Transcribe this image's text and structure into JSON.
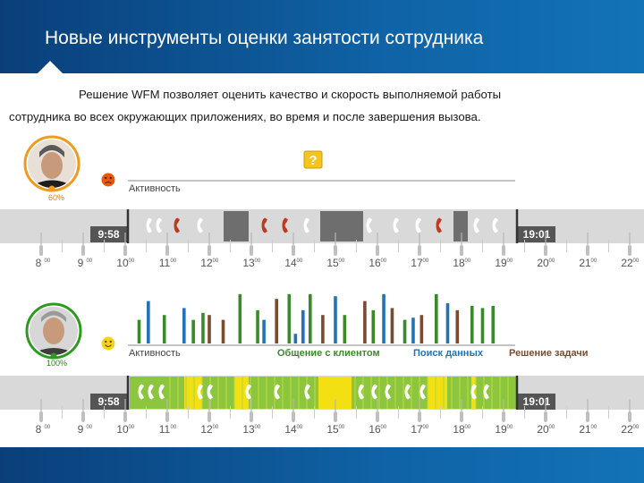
{
  "header": {
    "title": "Новые инструменты оценки занятости сотрудника"
  },
  "description": {
    "line1": "Решение WFM позволяет оценить качество и скорость выполняемой работы",
    "line2": "сотрудника во всех окружающих приложениях, во время и после завершения вызова."
  },
  "top_panel": {
    "percent": "60%",
    "activity_label": "Активность",
    "shift_start": "9:58",
    "shift_end": "19:01",
    "help_symbol": "?"
  },
  "bottom_panel": {
    "percent": "100%",
    "activity_label": "Активность",
    "legend": [
      {
        "label": "Общение с клиентом",
        "color": "#3a8a2a"
      },
      {
        "label": "Поиск данных",
        "color": "#1f74b8"
      },
      {
        "label": "Решение задачи",
        "color": "#7a4b30"
      }
    ],
    "shift_start": "9:58",
    "shift_end": "19:01",
    "bars": [
      {
        "hour": 10.33,
        "value": 0.44,
        "type": 0
      },
      {
        "hour": 10.55,
        "value": 0.79,
        "type": 1
      },
      {
        "hour": 10.93,
        "value": 0.53,
        "type": 0
      },
      {
        "hour": 11.4,
        "value": 0.66,
        "type": 1
      },
      {
        "hour": 11.62,
        "value": 0.44,
        "type": 0
      },
      {
        "hour": 11.85,
        "value": 0.57,
        "type": 0
      },
      {
        "hour": 12.0,
        "value": 0.53,
        "type": 2
      },
      {
        "hour": 12.33,
        "value": 0.44,
        "type": 2
      },
      {
        "hour": 12.73,
        "value": 0.92,
        "type": 0
      },
      {
        "hour": 13.15,
        "value": 0.62,
        "type": 0
      },
      {
        "hour": 13.3,
        "value": 0.44,
        "type": 1
      },
      {
        "hour": 13.6,
        "value": 0.83,
        "type": 2
      },
      {
        "hour": 13.9,
        "value": 0.92,
        "type": 0
      },
      {
        "hour": 14.05,
        "value": 0.18,
        "type": 1
      },
      {
        "hour": 14.23,
        "value": 0.62,
        "type": 1
      },
      {
        "hour": 14.4,
        "value": 0.92,
        "type": 0
      },
      {
        "hour": 14.7,
        "value": 0.53,
        "type": 2
      },
      {
        "hour": 15.0,
        "value": 0.88,
        "type": 1
      },
      {
        "hour": 15.22,
        "value": 0.53,
        "type": 0
      },
      {
        "hour": 15.7,
        "value": 0.79,
        "type": 2
      },
      {
        "hour": 15.9,
        "value": 0.62,
        "type": 0
      },
      {
        "hour": 16.15,
        "value": 0.92,
        "type": 1
      },
      {
        "hour": 16.35,
        "value": 0.66,
        "type": 2
      },
      {
        "hour": 16.65,
        "value": 0.44,
        "type": 0
      },
      {
        "hour": 16.85,
        "value": 0.48,
        "type": 1
      },
      {
        "hour": 17.05,
        "value": 0.53,
        "type": 2
      },
      {
        "hour": 17.4,
        "value": 0.92,
        "type": 0
      },
      {
        "hour": 17.67,
        "value": 0.75,
        "type": 1
      },
      {
        "hour": 17.9,
        "value": 0.62,
        "type": 2
      },
      {
        "hour": 18.25,
        "value": 0.7,
        "type": 0
      },
      {
        "hour": 18.5,
        "value": 0.66,
        "type": 0
      },
      {
        "hour": 18.75,
        "value": 0.7,
        "type": 0
      }
    ]
  },
  "time_axis": {
    "hours": [
      "8",
      "9",
      "10",
      "11",
      "12",
      "13",
      "14",
      "15",
      "16",
      "17",
      "18",
      "19",
      "20",
      "21",
      "22"
    ],
    "minutes": "00"
  },
  "colors": {
    "header_bg": "#0f63a6",
    "call_green": "#ffffff",
    "call_red": "#c0391e",
    "busy_gray": "#6e6e6e",
    "band_gray": "#d9d9d9",
    "active_green": "#8cc63f",
    "active_yellow": "#f3e012",
    "sad_ring": "#f29a1e",
    "happy_ring": "#2e9a1f"
  },
  "icons": [
    "phone-icon",
    "sad-face-icon",
    "happy-face-icon",
    "help-icon",
    "avatar"
  ]
}
